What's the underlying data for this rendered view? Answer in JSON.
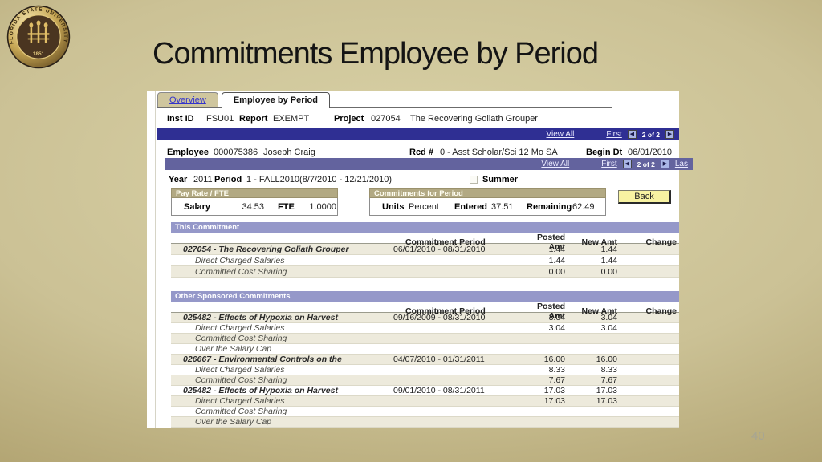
{
  "slide": {
    "title": "Commitments Employee by Period",
    "page_number": "40",
    "seal_text": "FLORIDA STATE UNIVERSITY",
    "seal_year": "1851"
  },
  "colors": {
    "nav_bar_primary": "#2f2f93",
    "nav_bar_secondary": "#63639e",
    "section_header": "#9598c9",
    "group_header": "#b2a983",
    "back_button": "#f8f3a2",
    "row_shade": "#edeadc"
  },
  "app": {
    "tabs": [
      {
        "label": "Overview",
        "active": false
      },
      {
        "label": "Employee by Period",
        "active": true
      }
    ],
    "header_fields": {
      "inst_id_label": "Inst ID",
      "inst_id": "FSU01",
      "report_label": "Report",
      "report": "EXEMPT",
      "project_label": "Project",
      "project": "027054",
      "project_name": "The Recovering Goliath Grouper"
    },
    "nav1": {
      "view_all": "View All",
      "first": "First",
      "count": "2 of 2"
    },
    "employee": {
      "label": "Employee",
      "id": "000075386",
      "name": "Joseph Craig",
      "rcd_label": "Rcd #",
      "rcd": "0 - Asst Scholar/Sci  12 Mo SA",
      "begin_label": "Begin Dt",
      "begin": "06/01/2010"
    },
    "nav2": {
      "view_all": "View All",
      "first": "First",
      "count": "2 of 2",
      "last": "Las"
    },
    "period_row": {
      "year_label": "Year",
      "year": "2011",
      "period_label": "Period",
      "period": "1 - FALL2010(8/7/2010 - 12/21/2010)",
      "summer_label": "Summer"
    },
    "pay_rate": {
      "title": "Pay Rate / FTE",
      "salary_label": "Salary",
      "salary": "34.53",
      "fte_label": "FTE",
      "fte": "1.0000"
    },
    "commitments_for_period": {
      "title": "Commitments for Period",
      "units_label": "Units",
      "units": "Percent",
      "entered_label": "Entered",
      "entered": "37.51",
      "remaining_label": "Remaining",
      "remaining": "62.49"
    },
    "back_button": "Back",
    "table_headers": {
      "period": "Commitment Period",
      "posted": "Posted Amt",
      "new_amt": "New Amt",
      "change": "Change"
    },
    "sections": [
      {
        "title": "This Commitment",
        "rows": [
          {
            "type": "project",
            "label": "027054 - The Recovering Goliath Grouper",
            "period": "06/01/2010 - 08/31/2010",
            "posted": "1.44",
            "new_amt": "1.44",
            "change": ""
          },
          {
            "type": "detail",
            "label": "Direct Charged Salaries",
            "period": "",
            "posted": "1.44",
            "new_amt": "1.44",
            "change": ""
          },
          {
            "type": "detail",
            "label": "Committed Cost Sharing",
            "period": "",
            "posted": "0.00",
            "new_amt": "0.00",
            "change": ""
          }
        ]
      },
      {
        "title": "Other Sponsored Commitments",
        "rows": [
          {
            "type": "project",
            "label": "025482 - Effects of Hypoxia on Harvest",
            "period": "09/16/2009 - 08/31/2010",
            "posted": "3.04",
            "new_amt": "3.04",
            "change": ""
          },
          {
            "type": "detail",
            "label": "Direct Charged Salaries",
            "period": "",
            "posted": "3.04",
            "new_amt": "3.04",
            "change": ""
          },
          {
            "type": "detail",
            "label": "Committed Cost Sharing",
            "period": "",
            "posted": "",
            "new_amt": "",
            "change": ""
          },
          {
            "type": "detail",
            "label": "Over the Salary Cap",
            "period": "",
            "posted": "",
            "new_amt": "",
            "change": ""
          },
          {
            "type": "project",
            "label": "026667 - Environmental Controls on the",
            "period": "04/07/2010 - 01/31/2011",
            "posted": "16.00",
            "new_amt": "16.00",
            "change": ""
          },
          {
            "type": "detail",
            "label": "Direct Charged Salaries",
            "period": "",
            "posted": "8.33",
            "new_amt": "8.33",
            "change": ""
          },
          {
            "type": "detail",
            "label": "Committed Cost Sharing",
            "period": "",
            "posted": "7.67",
            "new_amt": "7.67",
            "change": ""
          },
          {
            "type": "project",
            "label": "025482 - Effects of Hypoxia on Harvest",
            "period": "09/01/2010 - 08/31/2011",
            "posted": "17.03",
            "new_amt": "17.03",
            "change": ""
          },
          {
            "type": "detail",
            "label": "Direct Charged Salaries",
            "period": "",
            "posted": "17.03",
            "new_amt": "17.03",
            "change": ""
          },
          {
            "type": "detail",
            "label": "Committed Cost Sharing",
            "period": "",
            "posted": "",
            "new_amt": "",
            "change": ""
          },
          {
            "type": "detail",
            "label": "Over the Salary Cap",
            "period": "",
            "posted": "",
            "new_amt": "",
            "change": ""
          }
        ]
      }
    ]
  }
}
